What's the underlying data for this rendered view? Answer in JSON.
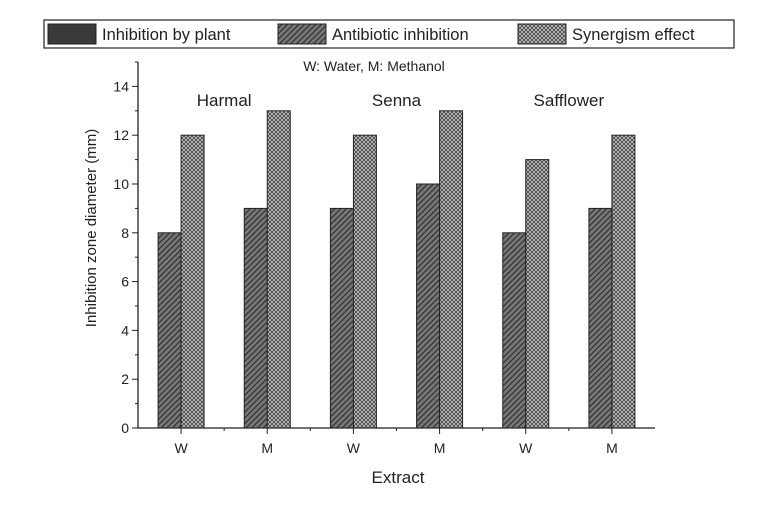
{
  "chart_data": {
    "type": "bar",
    "title": "",
    "xlabel": "Extract",
    "ylabel": "Inhibition zone diameter (mm)",
    "ylim": [
      0,
      15
    ],
    "yticks": [
      0,
      2,
      4,
      6,
      8,
      10,
      12,
      14
    ],
    "categories": [
      "W",
      "M",
      "W",
      "M",
      "W",
      "M"
    ],
    "groups": [
      "Harmal",
      "Senna",
      "Safflower"
    ],
    "annotation": "W: Water, M: Methanol",
    "legend_position": "top",
    "series": [
      {
        "name": "Inhibition by plant",
        "values": [
          null,
          null,
          null,
          null,
          null,
          null
        ],
        "pattern": "solid-dark",
        "color": "#3a3a3a"
      },
      {
        "name": "Antibiotic inhibition",
        "values": [
          8,
          9,
          9,
          10,
          8,
          9
        ],
        "pattern": "diagonal-hatch",
        "color": "#555555"
      },
      {
        "name": "Synergism effect",
        "values": [
          12,
          13,
          12,
          13,
          11,
          12
        ],
        "pattern": "crosshatch",
        "color": "#8a8a8a"
      }
    ]
  }
}
